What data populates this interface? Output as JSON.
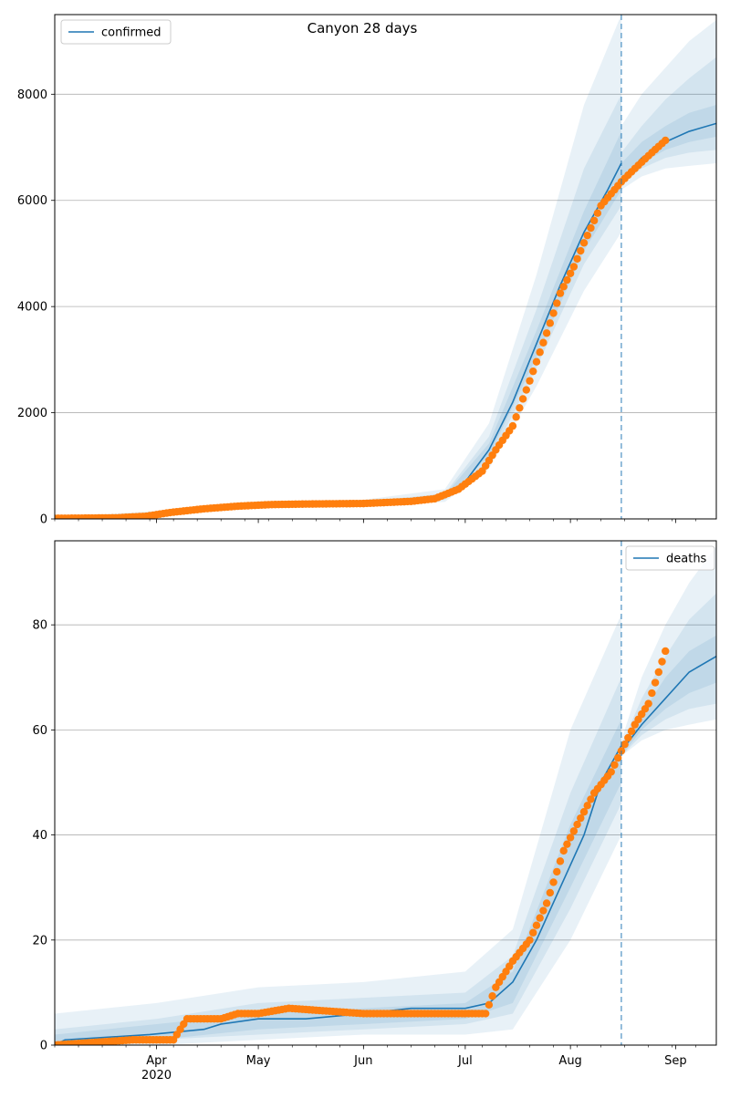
{
  "chart_data": [
    {
      "type": "line",
      "title": "Canyon 28 days",
      "xlabel": "",
      "ylabel": "",
      "x_range": [
        "2020-03-02",
        "2020-09-13"
      ],
      "ylim": [
        0,
        9500
      ],
      "y_ticks": [
        0,
        2000,
        4000,
        6000,
        8000
      ],
      "x_ticks": [
        {
          "date": "2020-04-01",
          "label": "Apr",
          "sublabel": ""
        },
        {
          "date": "2020-05-01",
          "label": "May",
          "sublabel": ""
        },
        {
          "date": "2020-06-01",
          "label": "Jun",
          "sublabel": ""
        },
        {
          "date": "2020-07-01",
          "label": "Jul",
          "sublabel": ""
        },
        {
          "date": "2020-08-01",
          "label": "Aug",
          "sublabel": ""
        },
        {
          "date": "2020-09-01",
          "label": "Sep",
          "sublabel": ""
        }
      ],
      "grid": "horizontal",
      "legend": {
        "placement": "top-left",
        "entries": [
          "confirmed"
        ]
      },
      "forecast_start": "2020-08-16",
      "colors": {
        "model": "#1f77b4",
        "observed": "#ff7f0e",
        "band": "#1f77b4"
      },
      "series": [
        {
          "name": "confirmed",
          "kind": "model",
          "x": [
            "2020-03-02",
            "2020-03-15",
            "2020-03-25",
            "2020-04-01",
            "2020-04-10",
            "2020-04-20",
            "2020-05-01",
            "2020-05-15",
            "2020-06-01",
            "2020-06-15",
            "2020-06-25",
            "2020-07-01",
            "2020-07-08",
            "2020-07-15",
            "2020-07-22",
            "2020-07-29",
            "2020-08-05",
            "2020-08-12",
            "2020-08-16"
          ],
          "values": [
            10,
            20,
            40,
            100,
            170,
            230,
            260,
            280,
            290,
            330,
            420,
            700,
            1300,
            2200,
            3300,
            4400,
            5400,
            6200,
            6700
          ]
        },
        {
          "name": "",
          "kind": "model",
          "x": [
            "2020-08-16",
            "2020-08-22",
            "2020-08-29",
            "2020-09-05",
            "2020-09-13"
          ],
          "values": [
            6350,
            6800,
            7100,
            7300,
            7450
          ]
        },
        {
          "name": "",
          "kind": "observed",
          "x": [
            "2020-03-02",
            "2020-03-20",
            "2020-03-29",
            "2020-04-05",
            "2020-04-15",
            "2020-04-25",
            "2020-05-05",
            "2020-05-15",
            "2020-06-01",
            "2020-06-15",
            "2020-06-22",
            "2020-06-29",
            "2020-07-06",
            "2020-07-10",
            "2020-07-15",
            "2020-07-20",
            "2020-07-25",
            "2020-07-29",
            "2020-08-02",
            "2020-08-05",
            "2020-08-10",
            "2020-08-16",
            "2020-08-20",
            "2020-08-25",
            "2020-08-29"
          ],
          "values": [
            10,
            20,
            50,
            120,
            190,
            240,
            270,
            280,
            290,
            330,
            380,
            560,
            900,
            1300,
            1750,
            2600,
            3500,
            4250,
            4750,
            5200,
            5900,
            6350,
            6600,
            6900,
            7130
          ]
        }
      ],
      "bands": [
        {
          "x": [
            "2020-03-02",
            "2020-04-01",
            "2020-05-01",
            "2020-06-01",
            "2020-06-25",
            "2020-07-08",
            "2020-07-22",
            "2020-08-05",
            "2020-08-16"
          ],
          "low": [
            5,
            60,
            200,
            240,
            320,
            950,
            2500,
            4300,
            5400
          ],
          "high": [
            30,
            150,
            330,
            360,
            560,
            1800,
            4600,
            7800,
            9500
          ]
        },
        {
          "x": [
            "2020-03-02",
            "2020-04-01",
            "2020-05-01",
            "2020-06-01",
            "2020-06-25",
            "2020-07-08",
            "2020-07-22",
            "2020-08-05",
            "2020-08-16"
          ],
          "low": [
            8,
            75,
            220,
            260,
            360,
            1080,
            2850,
            4800,
            5900
          ],
          "high": [
            22,
            125,
            300,
            320,
            480,
            1550,
            3950,
            6600,
            8000
          ]
        },
        {
          "x": [
            "2020-03-02",
            "2020-04-01",
            "2020-05-01",
            "2020-06-01",
            "2020-06-25",
            "2020-07-08",
            "2020-07-22",
            "2020-08-05",
            "2020-08-16"
          ],
          "low": [
            9,
            85,
            240,
            275,
            390,
            1180,
            3050,
            5050,
            6200
          ],
          "high": [
            16,
            115,
            280,
            305,
            450,
            1420,
            3550,
            5800,
            7300
          ]
        },
        {
          "x": [
            "2020-08-16",
            "2020-08-22",
            "2020-08-29",
            "2020-09-05",
            "2020-09-13"
          ],
          "low": [
            6200,
            6450,
            6600,
            6650,
            6700
          ],
          "high": [
            7400,
            8000,
            8500,
            9000,
            9400
          ]
        },
        {
          "x": [
            "2020-08-16",
            "2020-08-22",
            "2020-08-29",
            "2020-09-05",
            "2020-09-13"
          ],
          "low": [
            6300,
            6600,
            6800,
            6900,
            6950
          ],
          "high": [
            6900,
            7400,
            7900,
            8300,
            8700
          ]
        },
        {
          "x": [
            "2020-08-16",
            "2020-08-22",
            "2020-08-29",
            "2020-09-05",
            "2020-09-13"
          ],
          "low": [
            6350,
            6700,
            6950,
            7100,
            7200
          ],
          "high": [
            6700,
            7100,
            7400,
            7650,
            7800
          ]
        }
      ]
    },
    {
      "type": "line",
      "title": "",
      "xlabel": "",
      "ylabel": "",
      "x_range": [
        "2020-03-02",
        "2020-09-13"
      ],
      "ylim": [
        0,
        96
      ],
      "y_ticks": [
        0,
        20,
        40,
        60,
        80
      ],
      "x_ticks": [
        {
          "date": "2020-04-01",
          "label": "Apr",
          "sublabel": "2020"
        },
        {
          "date": "2020-05-01",
          "label": "May",
          "sublabel": ""
        },
        {
          "date": "2020-06-01",
          "label": "Jun",
          "sublabel": ""
        },
        {
          "date": "2020-07-01",
          "label": "Jul",
          "sublabel": ""
        },
        {
          "date": "2020-08-01",
          "label": "Aug",
          "sublabel": ""
        },
        {
          "date": "2020-09-01",
          "label": "Sep",
          "sublabel": ""
        }
      ],
      "grid": "horizontal",
      "legend": {
        "placement": "top-right",
        "entries": [
          "deaths"
        ]
      },
      "forecast_start": "2020-08-16",
      "colors": {
        "model": "#1f77b4",
        "observed": "#ff7f0e",
        "band": "#1f77b4"
      },
      "series": [
        {
          "name": "deaths",
          "kind": "model",
          "x": [
            "2020-03-02",
            "2020-03-05",
            "2020-03-30",
            "2020-04-15",
            "2020-04-20",
            "2020-05-01",
            "2020-05-15",
            "2020-06-01",
            "2020-06-15",
            "2020-07-01",
            "2020-07-08",
            "2020-07-15",
            "2020-07-22",
            "2020-07-29",
            "2020-08-05",
            "2020-08-10",
            "2020-08-16"
          ],
          "values": [
            0,
            1,
            2,
            3,
            4,
            5,
            5,
            6,
            7,
            7,
            8,
            12,
            20,
            30,
            40,
            50,
            57
          ]
        },
        {
          "name": "",
          "kind": "model",
          "x": [
            "2020-08-16",
            "2020-08-22",
            "2020-08-29",
            "2020-09-05",
            "2020-09-13"
          ],
          "values": [
            56,
            61,
            66,
            71,
            74
          ]
        },
        {
          "name": "",
          "kind": "observed",
          "x": [
            "2020-03-02",
            "2020-03-25",
            "2020-04-06",
            "2020-04-10",
            "2020-04-20",
            "2020-04-25",
            "2020-05-01",
            "2020-05-10",
            "2020-06-01",
            "2020-06-15",
            "2020-07-01",
            "2020-07-07",
            "2020-07-10",
            "2020-07-15",
            "2020-07-20",
            "2020-07-25",
            "2020-07-30",
            "2020-08-03",
            "2020-08-08",
            "2020-08-13",
            "2020-08-16",
            "2020-08-20",
            "2020-08-24",
            "2020-08-29"
          ],
          "values": [
            0,
            1,
            1,
            5,
            5,
            6,
            6,
            7,
            6,
            6,
            6,
            6,
            11,
            16,
            20,
            27,
            37,
            42,
            48,
            52,
            56,
            61,
            65,
            75
          ]
        }
      ],
      "bands": [
        {
          "x": [
            "2020-03-02",
            "2020-04-01",
            "2020-05-01",
            "2020-06-01",
            "2020-07-01",
            "2020-07-15",
            "2020-08-01",
            "2020-08-16"
          ],
          "low": [
            0,
            0,
            1,
            2,
            2,
            3,
            20,
            40
          ],
          "high": [
            6,
            8,
            11,
            12,
            14,
            22,
            60,
            82
          ]
        },
        {
          "x": [
            "2020-03-02",
            "2020-04-01",
            "2020-05-01",
            "2020-06-01",
            "2020-07-01",
            "2020-07-15",
            "2020-08-01",
            "2020-08-16"
          ],
          "low": [
            0,
            1,
            2,
            3,
            4,
            6,
            26,
            46
          ],
          "high": [
            3,
            5,
            8,
            9,
            10,
            17,
            48,
            70
          ]
        },
        {
          "x": [
            "2020-03-02",
            "2020-04-01",
            "2020-05-01",
            "2020-06-01",
            "2020-07-01",
            "2020-07-15",
            "2020-08-01",
            "2020-08-16"
          ],
          "low": [
            0,
            1,
            3,
            4,
            5,
            8,
            30,
            50
          ],
          "high": [
            2,
            4,
            6,
            7,
            8,
            14,
            42,
            62
          ]
        },
        {
          "x": [
            "2020-08-16",
            "2020-08-22",
            "2020-08-29",
            "2020-09-05",
            "2020-09-13"
          ],
          "low": [
            55,
            58,
            60,
            61,
            62
          ],
          "high": [
            58,
            70,
            80,
            88,
            95
          ]
        },
        {
          "x": [
            "2020-08-16",
            "2020-08-22",
            "2020-08-29",
            "2020-09-05",
            "2020-09-13"
          ],
          "low": [
            55,
            59,
            62,
            64,
            65
          ],
          "high": [
            57,
            66,
            74,
            81,
            86
          ]
        },
        {
          "x": [
            "2020-08-16",
            "2020-08-22",
            "2020-08-29",
            "2020-09-05",
            "2020-09-13"
          ],
          "low": [
            55,
            60,
            64,
            67,
            69
          ],
          "high": [
            57,
            63,
            70,
            75,
            78
          ]
        }
      ]
    }
  ]
}
